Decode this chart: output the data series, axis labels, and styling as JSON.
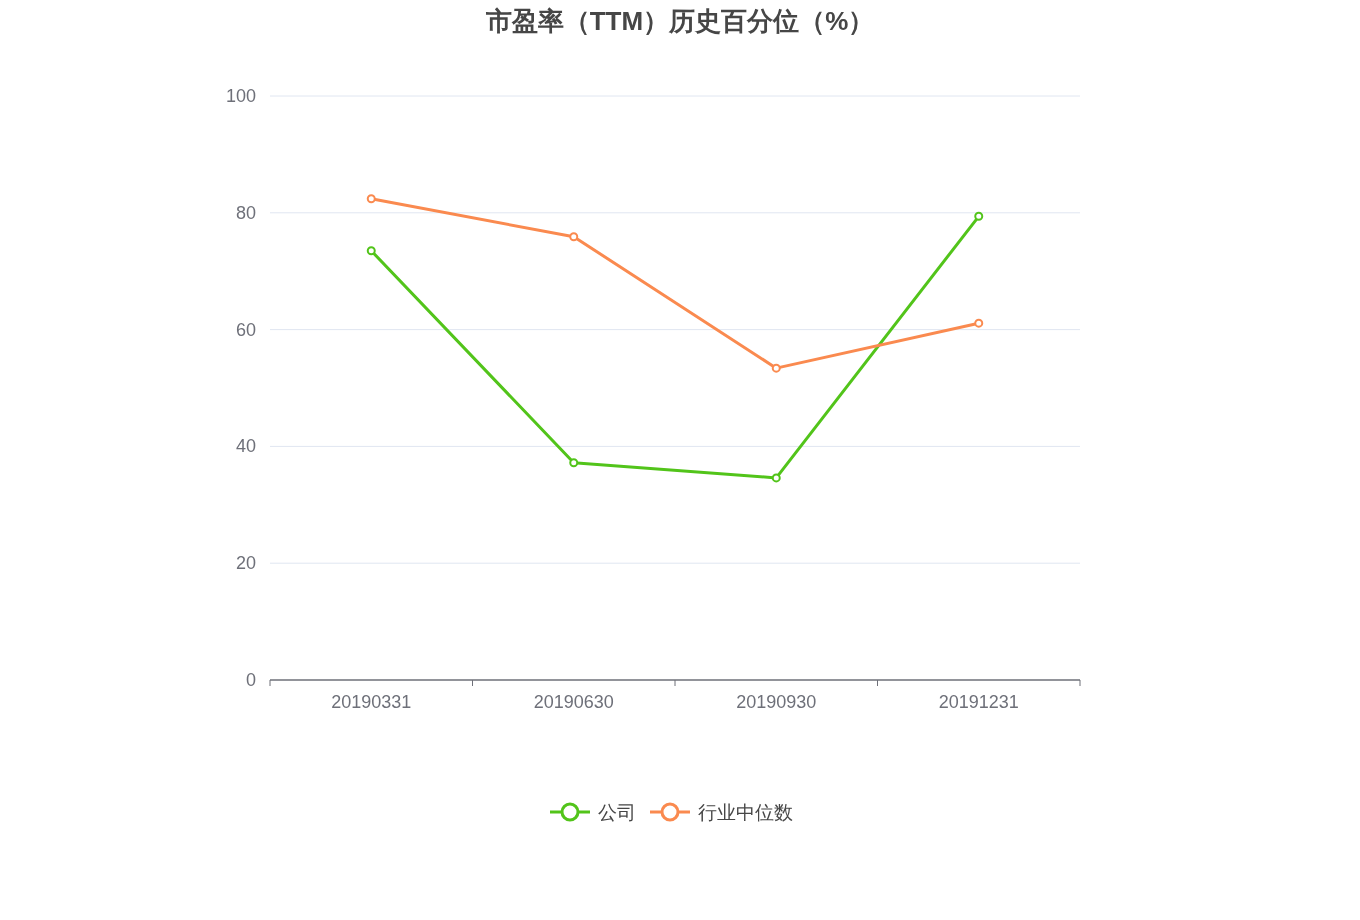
{
  "chart_data": {
    "type": "line",
    "title": "市盈率（TTM）历史百分位（%）",
    "categories": [
      "20190331",
      "20190630",
      "20190930",
      "20191231"
    ],
    "series": [
      {
        "name": "公司",
        "color": "#52c41a",
        "values": [
          73.5,
          37.2,
          34.6,
          79.4
        ]
      },
      {
        "name": "行业中位数",
        "color": "#fa8a4f",
        "values": [
          82.4,
          75.9,
          53.4,
          61.1
        ]
      }
    ],
    "ylim": [
      0,
      100
    ],
    "yticks": [
      0,
      20,
      40,
      60,
      80,
      100
    ],
    "grid": "y",
    "legend": "bottom",
    "marker": "circle",
    "line_style": "solid"
  }
}
